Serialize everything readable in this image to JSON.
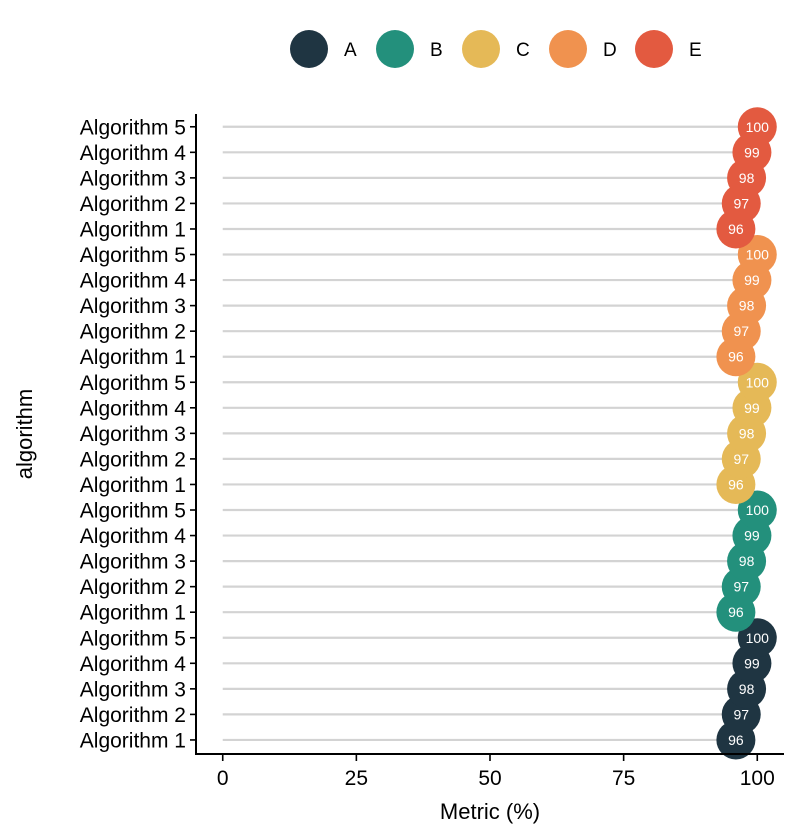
{
  "chart_data": {
    "type": "lollipop",
    "xlabel": "Metric (%)",
    "ylabel": "algorithm",
    "xlim": [
      -5,
      105
    ],
    "xticks": [
      0,
      25,
      50,
      75,
      100
    ],
    "legend": {
      "position": "top",
      "entries": [
        "A",
        "B",
        "C",
        "D",
        "E"
      ]
    },
    "categories": [
      "Algorithm 1",
      "Algorithm 2",
      "Algorithm 3",
      "Algorithm 4",
      "Algorithm 5"
    ],
    "series": [
      {
        "name": "A",
        "color": "#1f3542",
        "values": [
          96,
          97,
          98,
          99,
          100
        ]
      },
      {
        "name": "B",
        "color": "#23907c",
        "values": [
          96,
          97,
          98,
          99,
          100
        ]
      },
      {
        "name": "C",
        "color": "#e5b957",
        "values": [
          96,
          97,
          98,
          99,
          100
        ]
      },
      {
        "name": "D",
        "color": "#f0924f",
        "values": [
          96,
          97,
          98,
          99,
          100
        ]
      },
      {
        "name": "E",
        "color": "#e35a40",
        "values": [
          96,
          97,
          98,
          99,
          100
        ]
      }
    ],
    "grid": false,
    "segment_color": "#d3d3d3"
  }
}
